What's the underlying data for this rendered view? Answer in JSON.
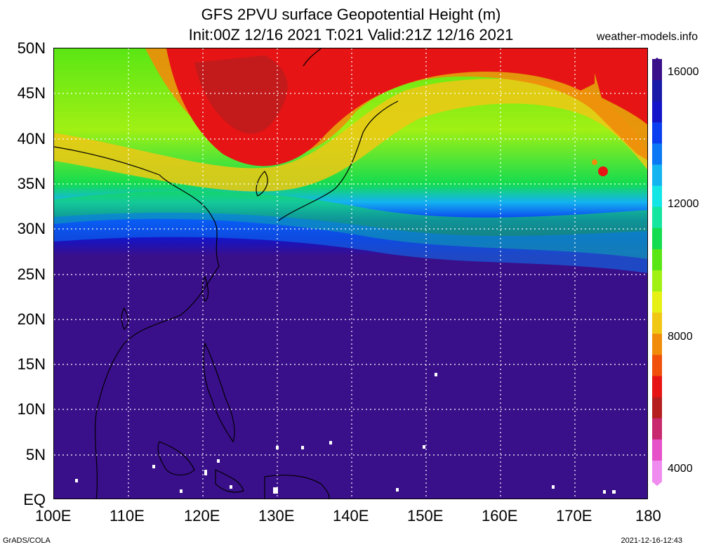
{
  "header": {
    "title_line1": "GFS 2PVU surface Geopotential Height (m)",
    "title_line2": "Init:00Z 12/16 2021 T:021 Valid:21Z 12/16 2021",
    "source": "weather-models.info"
  },
  "map": {
    "region": "East Asia / Western Pacific",
    "lat_labels": [
      "50N",
      "45N",
      "40N",
      "35N",
      "30N",
      "25N",
      "20N",
      "15N",
      "10N",
      "5N",
      "EQ"
    ],
    "lon_labels": [
      "100E",
      "110E",
      "120E",
      "130E",
      "140E",
      "150E",
      "160E",
      "170E",
      "180"
    ],
    "gridlines": "dotted white"
  },
  "colorbar": {
    "ticks": [
      "16000",
      "12000",
      "8000",
      "4000"
    ],
    "colors_top_to_bottom": [
      "#3a0f8a",
      "#1a1aa8",
      "#1414c8",
      "#0a3cf0",
      "#0a78f5",
      "#14b4f0",
      "#14e6e6",
      "#14e6a0",
      "#14dc50",
      "#5ae614",
      "#a0f014",
      "#e6f014",
      "#f0c814",
      "#f08c0a",
      "#f0500a",
      "#e61414",
      "#b41e1e",
      "#c8286e",
      "#e650c8",
      "#f08cf0"
    ]
  },
  "footer": {
    "left": "GrADS/COLA",
    "right": "2021-12-16-12:43"
  }
}
